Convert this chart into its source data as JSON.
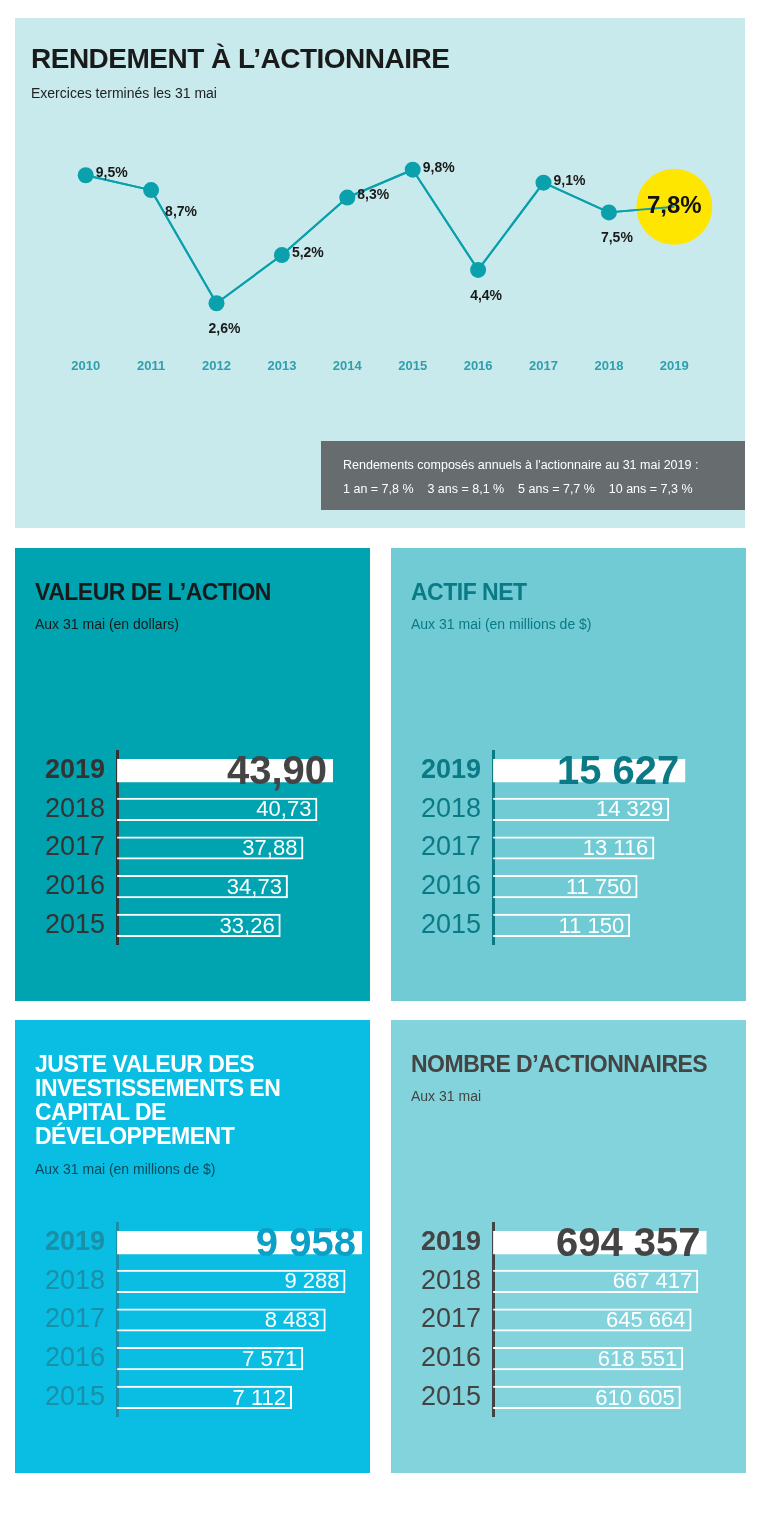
{
  "chart_data": [
    {
      "type": "line",
      "title": "RENDEMENT À L’ACTIONNAIRE",
      "subtitle": "Exercices terminés les 31 mai",
      "categories": [
        "2010",
        "2011",
        "2012",
        "2013",
        "2014",
        "2015",
        "2016",
        "2017",
        "2018",
        "2019"
      ],
      "series": [
        {
          "color": "#0aa0ac",
          "colors": [
            "#0aa0ac",
            "#0aa0ac",
            "#0aa0ac",
            "#0aa0ac",
            "#0aa0ac",
            "#0aa0ac",
            "#0aa0ac",
            "#0aa0ac",
            "#0aa0ac",
            "#ffe600"
          ],
          "values": [
            9.5,
            8.7,
            2.6,
            5.2,
            8.3,
            9.8,
            4.4,
            9.1,
            7.5,
            7.8
          ],
          "value_labels": [
            "9,5%",
            "8,7%",
            "2,6%",
            "5,2%",
            "8,3%",
            "9,8%",
            "4,4%",
            "9,1%",
            "7,5%",
            "7,8%"
          ]
        }
      ],
      "tick_labels": "x",
      "grid": false,
      "legend": false,
      "marker": "circle",
      "line_style": "solid",
      "annotations": [
        "Rendements composés annuels à l'actionnaire au 31 mai 2019 :",
        "1 an = 7,8 %    3 ans = 8,1 %    5 ans = 7,7 %    10 ans = 7,3 %"
      ]
    },
    {
      "type": "bar",
      "orientation": "horizontal",
      "title": "VALEUR DE L’ACTION",
      "subtitle": "Aux 31 mai (en dollars)",
      "categories": [
        "2019",
        "2018",
        "2017",
        "2016",
        "2015"
      ],
      "color": "#ffffff",
      "values": [
        43.9,
        40.73,
        37.88,
        34.73,
        33.26
      ],
      "value_labels": [
        "43,90",
        "40,73",
        "37,88",
        "34,73",
        "33,26"
      ],
      "tick_labels": "y",
      "grid": false,
      "legend": false
    },
    {
      "type": "bar",
      "orientation": "horizontal",
      "title": "ACTIF NET",
      "subtitle": "Aux 31 mai (en millions de $)",
      "categories": [
        "2019",
        "2018",
        "2017",
        "2016",
        "2015"
      ],
      "color": "#ffffff",
      "values": [
        15627,
        14329,
        13116,
        11750,
        11150
      ],
      "value_labels": [
        "15 627",
        "14 329",
        "13 116",
        "11 750",
        "11 150"
      ],
      "tick_labels": "y",
      "grid": false,
      "legend": false
    },
    {
      "type": "bar",
      "orientation": "horizontal",
      "title": "JUSTE VALEUR DES INVESTISSEMENTS EN CAPITAL DE DÉVELOPPEMENT",
      "subtitle": "Aux 31 mai (en millions de $)",
      "categories": [
        "2019",
        "2018",
        "2017",
        "2016",
        "2015"
      ],
      "color": "#ffffff",
      "values": [
        9958,
        9288,
        8483,
        7571,
        7112
      ],
      "value_labels": [
        "9 958",
        "9 288",
        "8 483",
        "7 571",
        "7 112"
      ],
      "tick_labels": "y",
      "grid": false,
      "legend": false
    },
    {
      "type": "bar",
      "orientation": "horizontal",
      "title": "NOMBRE D’ACTIONNAIRES",
      "subtitle": "Aux 31 mai",
      "categories": [
        "2019",
        "2018",
        "2017",
        "2016",
        "2015"
      ],
      "color": "#ffffff",
      "values": [
        694357,
        667417,
        645664,
        618551,
        610605
      ],
      "value_labels": [
        "694 357",
        "667 417",
        "645 664",
        "618 551",
        "610 605"
      ],
      "tick_labels": "y",
      "grid": false,
      "legend": false
    }
  ]
}
